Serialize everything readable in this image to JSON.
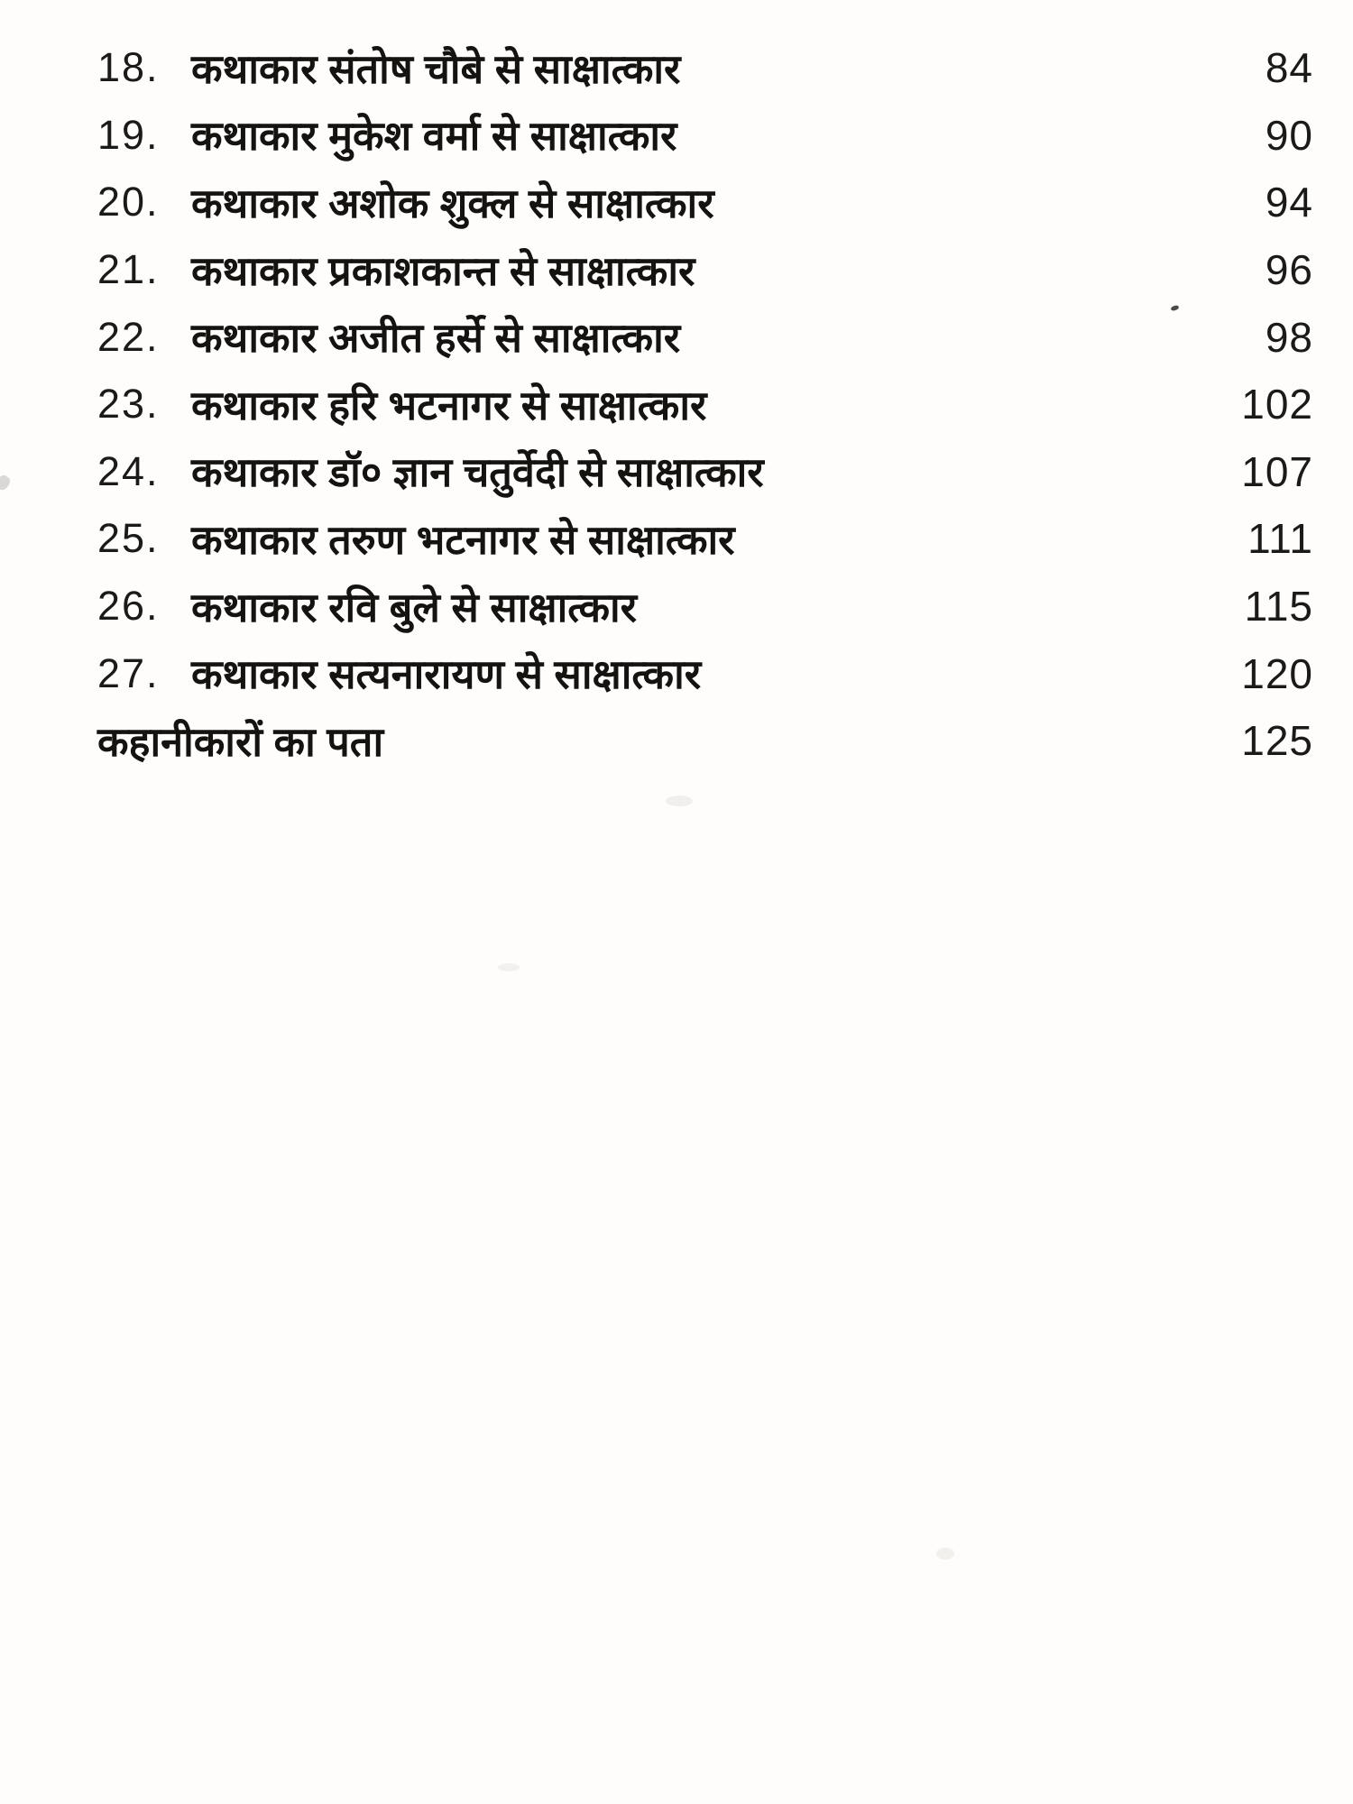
{
  "colors": {
    "paper": "#fefdfb",
    "ink": "#161412"
  },
  "toc": {
    "entries": [
      {
        "number": "18.",
        "title": "कथाकार संतोष चौबे से साक्षात्कार",
        "page": "84"
      },
      {
        "number": "19.",
        "title": "कथाकार मुकेश वर्मा से साक्षात्कार",
        "page": "90"
      },
      {
        "number": "20.",
        "title": "कथाकार अशोक शुक्ल से साक्षात्कार",
        "page": "94"
      },
      {
        "number": "21.",
        "title": "कथाकार प्रकाशकान्त से साक्षात्कार",
        "page": "96"
      },
      {
        "number": "22.",
        "title": "कथाकार अजीत हर्से से साक्षात्कार",
        "page": "98"
      },
      {
        "number": "23.",
        "title": "कथाकार हरि भटनागर से साक्षात्कार",
        "page": "102"
      },
      {
        "number": "24.",
        "title": "कथाकार डॉ० ज्ञान चतुर्वेदी से साक्षात्कार",
        "page": "107"
      },
      {
        "number": "25.",
        "title": "कथाकार तरुण भटनागर से साक्षात्कार",
        "page": "111"
      },
      {
        "number": "26.",
        "title": "कथाकार रवि बुले से साक्षात्कार",
        "page": "115"
      },
      {
        "number": "27.",
        "title": "कथाकार सत्यनारायण से साक्षात्कार",
        "page": "120"
      },
      {
        "number": "",
        "title": "कहानीकारों का पता",
        "page": "125"
      }
    ]
  }
}
